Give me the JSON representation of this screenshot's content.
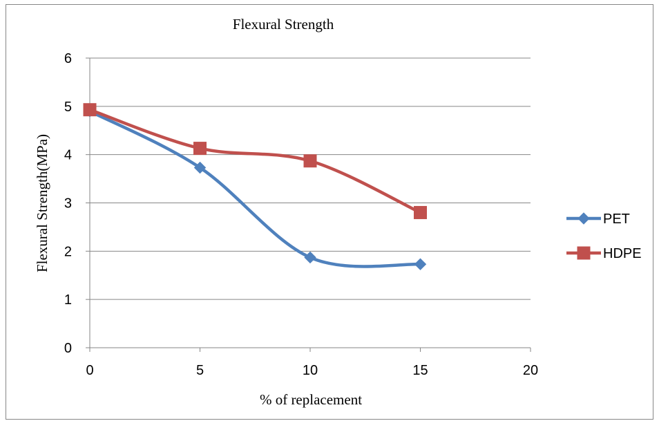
{
  "chart_data": {
    "type": "line",
    "title": "Flexural Strength",
    "xlabel": "% of replacement",
    "ylabel": "Flexural Strength(MPa)",
    "xlim": [
      0,
      20
    ],
    "ylim": [
      0,
      6
    ],
    "x_ticks": [
      "0",
      "5",
      "10",
      "15",
      "20"
    ],
    "y_ticks": [
      "0",
      "1",
      "2",
      "3",
      "4",
      "5",
      "6"
    ],
    "grid": true,
    "legend_position": "right",
    "x": [
      0,
      5,
      10,
      15
    ],
    "series": [
      {
        "name": "PET",
        "values": [
          4.9,
          3.73,
          1.87,
          1.73
        ],
        "color": "#4f81bd",
        "marker": "diamond",
        "smooth": true
      },
      {
        "name": "HDPE",
        "values": [
          4.93,
          4.13,
          3.87,
          2.8
        ],
        "color": "#c0504d",
        "marker": "square",
        "smooth": true
      }
    ]
  }
}
